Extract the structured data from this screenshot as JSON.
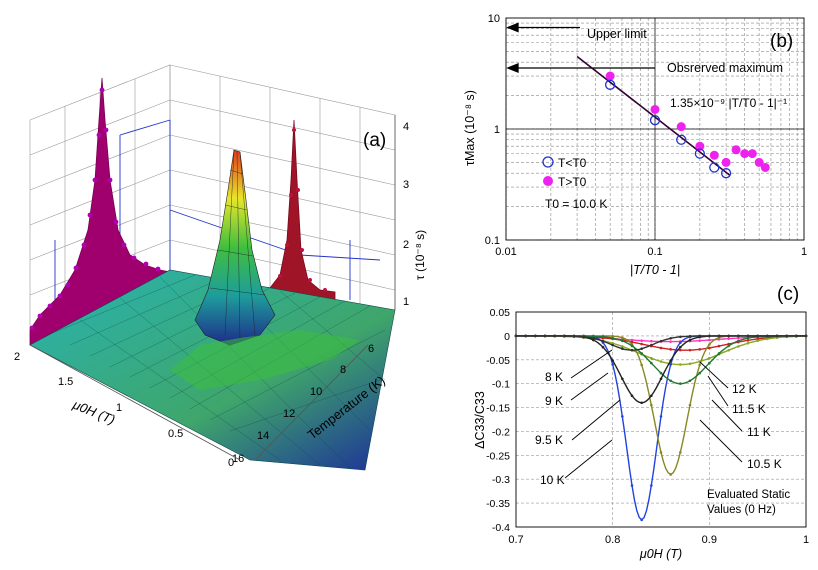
{
  "chart_data": [
    {
      "type": "surface3d",
      "panel_label": "(a)",
      "xlabel": "μ0H (T)",
      "ylabel": "Temperature (K)",
      "zlabel": "τ (10⁻⁸ s)",
      "x_ticks": [
        "0",
        "0.5",
        "1",
        "1.5",
        "2"
      ],
      "y_ticks": [
        "6",
        "8",
        "10",
        "12",
        "14",
        "16"
      ],
      "z_ticks": [
        "1",
        "2",
        "3",
        "4"
      ],
      "colors": {
        "projection_magenta": "#a0006e",
        "projection_red": "#a01428",
        "markers": "#b000b0"
      }
    },
    {
      "type": "scatter",
      "panel_label": "(b)",
      "xlabel": "|T/T0 - 1|",
      "ylabel": "τMax (10⁻⁸ s)",
      "xscale": "log",
      "yscale": "log",
      "xlim": [
        0.01,
        1
      ],
      "ylim": [
        0.1,
        10
      ],
      "x_tick_labels": [
        "0.01",
        "0.1",
        "1"
      ],
      "y_tick_labels": [
        "0.1",
        "1",
        "10"
      ],
      "annotations": {
        "upper_limit": "Upper limit",
        "observed_max": "Obsrerved maximum",
        "fit": "1.35×10⁻⁹ |T/T0 - 1|⁻¹",
        "t0": "T0 = 10.0 K"
      },
      "series": [
        {
          "name": "T<T0",
          "marker": "open-circle",
          "color": "#2233cc",
          "x": [
            0.05,
            0.1,
            0.15,
            0.2,
            0.25,
            0.3
          ],
          "y": [
            2.5,
            1.2,
            0.8,
            0.6,
            0.45,
            0.4
          ]
        },
        {
          "name": "T>T0",
          "marker": "filled-circle",
          "color": "#ee22ee",
          "x": [
            0.05,
            0.1,
            0.15,
            0.2,
            0.25,
            0.3,
            0.35,
            0.4,
            0.45,
            0.5,
            0.55
          ],
          "y": [
            3.0,
            1.5,
            1.05,
            0.7,
            0.58,
            0.5,
            0.65,
            0.6,
            0.6,
            0.5,
            0.45
          ]
        }
      ],
      "fit_line": {
        "x": [
          0.03,
          0.32
        ],
        "y": [
          4.5,
          0.38
        ],
        "color": "#330033"
      }
    },
    {
      "type": "line",
      "panel_label": "(c)",
      "xlabel": "μ0H (T)",
      "ylabel": "ΔC33/C33",
      "xlim": [
        0.7,
        1.0
      ],
      "ylim": [
        -0.4,
        0.05
      ],
      "x_tick_labels": [
        "0.7",
        "0.8",
        "0.9",
        "1"
      ],
      "y_tick_labels": [
        "0.05",
        "0",
        "-0.05",
        "-0.1",
        "-0.15",
        "-0.2",
        "-0.25",
        "-0.3",
        "-0.35",
        "-0.4"
      ],
      "annotation": "Evaluated Static Values (0 Hz)",
      "series": [
        {
          "name": "8 K",
          "color": "#ff33bb",
          "center": 0.86,
          "depth": 0.012,
          "width": 0.07
        },
        {
          "name": "9 K",
          "color": "#cc2222",
          "center": 0.875,
          "depth": 0.03,
          "width": 0.06
        },
        {
          "name": "9.5 K",
          "color": "#88aa22",
          "center": 0.87,
          "depth": 0.06,
          "width": 0.06
        },
        {
          "name": "10 K",
          "color": "#2244dd",
          "center": 0.83,
          "depth": 0.385,
          "width": 0.022
        },
        {
          "name": "10.5 K",
          "color": "#888822",
          "center": 0.86,
          "depth": 0.29,
          "width": 0.024
        },
        {
          "name": "11 K",
          "color": "#227733",
          "center": 0.87,
          "depth": 0.1,
          "width": 0.04
        },
        {
          "name": "11.5 K",
          "color": "#222222",
          "center": 0.83,
          "depth": 0.14,
          "width": 0.03
        },
        {
          "name": "12 K",
          "color": "#333333",
          "center": 0.82,
          "depth": 0.03,
          "width": 0.03
        }
      ],
      "curve_labels": [
        "8 K",
        "9 K",
        "9.5 K",
        "10 K",
        "12 K",
        "11.5 K",
        "11 K",
        "10.5 K"
      ]
    }
  ]
}
